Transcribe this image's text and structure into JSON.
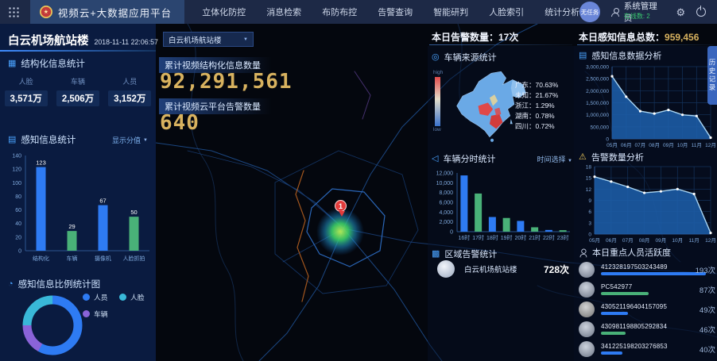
{
  "topbar": {
    "app_title": "视频云+大数据应用平台",
    "nav": [
      {
        "label": "立体化防控"
      },
      {
        "label": "消息检索"
      },
      {
        "label": "布防布控"
      },
      {
        "label": "告警查询"
      },
      {
        "label": "智能研判"
      },
      {
        "label": "人脸索引"
      },
      {
        "label": "统计分析"
      }
    ],
    "task_badge": "无任务",
    "user_name": "系统管理员",
    "online_status": "在线数: 2"
  },
  "left": {
    "station_title": "白云机场航站楼",
    "datetime": "2018-11-11 22:06:57",
    "structured": {
      "title": "结构化信息统计",
      "stats": [
        {
          "label": "人脸",
          "value": "3,571万"
        },
        {
          "label": "车辆",
          "value": "2,506万"
        },
        {
          "label": "人员",
          "value": "3,152万"
        }
      ]
    },
    "perception": {
      "title": "感知信息统计",
      "dropdown": "显示分值"
    },
    "ratio": {
      "title": "感知信息比例统计图",
      "legend": [
        {
          "label": "人员",
          "color": "#2e7bf3"
        },
        {
          "label": "人脸",
          "color": "#39b8d8"
        },
        {
          "label": "车辆",
          "color": "#8a63d8"
        }
      ]
    }
  },
  "map": {
    "area_selector": "白云机场航站楼",
    "cum_structured_label": "累计视频结构化信息数量",
    "cum_structured_value": "92,291,561",
    "cum_alarm_label": "累计视频云平台告警数量",
    "cum_alarm_value": "640",
    "pin_count": "1",
    "history_tab": "历史记录"
  },
  "mid": {
    "today_alarm": "本日告警数量：17次",
    "vehicle_source": {
      "title": "车辆来源统计",
      "scale_high": "high",
      "scale_low": "low",
      "legend": [
        {
          "text": "广东：70.63%"
        },
        {
          "text": "未知：21.67%"
        },
        {
          "text": "浙江：1.29%"
        },
        {
          "text": "湖南：0.78%"
        },
        {
          "text": "四川：0.72%"
        }
      ]
    },
    "vehicle_hours": {
      "title": "车辆分时统计",
      "dropdown": "时间选择"
    },
    "region_alarm": {
      "title": "区域告警统计",
      "rows": [
        {
          "name": "白云机场航站楼",
          "count": "728次"
        }
      ]
    }
  },
  "right": {
    "today_info_label": "本日感知信息总数：",
    "today_info_value": "959,456",
    "info_analysis_title": "感知信息数据分析",
    "alarm_analysis_title": "告警数量分析",
    "persons_title": "本日重点人员活跃度",
    "persons": [
      {
        "id": "412328197503243489",
        "count": "193次",
        "count_num": 193,
        "bar_color": "#2e7bf3"
      },
      {
        "id": "PC542977",
        "count": "87次",
        "count_num": 87,
        "bar_color": "#49b178"
      },
      {
        "id": "430521196404157095",
        "count": "49次",
        "count_num": 49,
        "bar_color": "#2e7bf3"
      },
      {
        "id": "430981198805292834",
        "count": "46次",
        "count_num": 46,
        "bar_color": "#49b178"
      },
      {
        "id": "341225198203276853",
        "count": "40次",
        "count_num": 40,
        "bar_color": "#2e7bf3"
      }
    ]
  },
  "icons": {
    "bar_chart": "▦",
    "list": "▤",
    "clock": "◔",
    "compass": "◎",
    "share": "◁",
    "grid": "▩",
    "line_chart": "▤",
    "warning": "⚠"
  },
  "charts": {
    "perception_bar": {
      "type": "bar",
      "categories": [
        "结构化",
        "车辆",
        "摄像机",
        "人脸抓拍"
      ],
      "values": [
        123,
        29,
        67,
        50
      ],
      "colors": [
        "#2e7bf3",
        "#49b178",
        "#2e7bf3",
        "#49b178"
      ],
      "ymax": 140,
      "yticks": [
        0,
        20,
        40,
        60,
        80,
        100,
        120,
        140
      ],
      "ytick_labels": [
        "0",
        "20",
        "40",
        "60",
        "80",
        "100",
        "120",
        "140"
      ],
      "show_values": true
    },
    "vehicle_hour_bar": {
      "type": "bar",
      "categories": [
        "16时",
        "17时",
        "18时",
        "19时",
        "20时",
        "21时",
        "22时",
        "23时"
      ],
      "values": [
        11500,
        7800,
        3000,
        2800,
        2200,
        900,
        350,
        300
      ],
      "colors": [
        "#2e7bf3",
        "#49b178"
      ],
      "ymax": 12000,
      "yticks": [
        0,
        2000,
        4000,
        6000,
        8000,
        10000,
        12000
      ],
      "ytick_labels": [
        "0",
        "2,000",
        "4,000",
        "6,000",
        "8,000",
        "10,000",
        "12,000"
      ],
      "show_values": false
    },
    "perception_line": {
      "type": "area",
      "x": [
        "05月",
        "06月",
        "07月",
        "08月",
        "09月",
        "10月",
        "11月",
        "12月"
      ],
      "values": [
        2600000,
        1750000,
        1150000,
        1050000,
        1200000,
        1000000,
        950000,
        50000
      ],
      "ymax": 3000000,
      "yticks": [
        0,
        500000,
        1000000,
        1500000,
        2000000,
        2500000,
        3000000
      ],
      "ytick_labels": [
        "0",
        "500,000",
        "1,000,000",
        "1,500,000",
        "2,000,000",
        "2,500,000",
        "3,000,000"
      ],
      "fill": "#1d5da8",
      "stroke": "#a8d4f2"
    },
    "alarm_line": {
      "type": "area",
      "x": [
        "05月",
        "06月",
        "07月",
        "08月",
        "09月",
        "10月",
        "11月",
        "12月"
      ],
      "values": [
        15.3,
        14,
        12.6,
        11,
        11.4,
        12,
        10.7,
        0.3
      ],
      "ymax": 18,
      "yticks": [
        0,
        3,
        6,
        9,
        12,
        15,
        18
      ],
      "ytick_labels": [
        "0",
        "3",
        "6",
        "9",
        "12",
        "15",
        "18"
      ],
      "fill": "#1d5da8",
      "stroke": "#a8d4f2"
    },
    "ratio_donut": {
      "type": "pie",
      "segments": [
        {
          "label": "人员",
          "value": 58,
          "color": "#2e7bf3"
        },
        {
          "label": "车辆",
          "value": 17,
          "color": "#8a63d8"
        },
        {
          "label": "人脸",
          "value": 25,
          "color": "#39b8d8"
        }
      ]
    }
  },
  "colors": {
    "accent": "#3f8cff",
    "gold": "#d8b25f",
    "green": "#49b178",
    "blue": "#2e7bf3"
  }
}
